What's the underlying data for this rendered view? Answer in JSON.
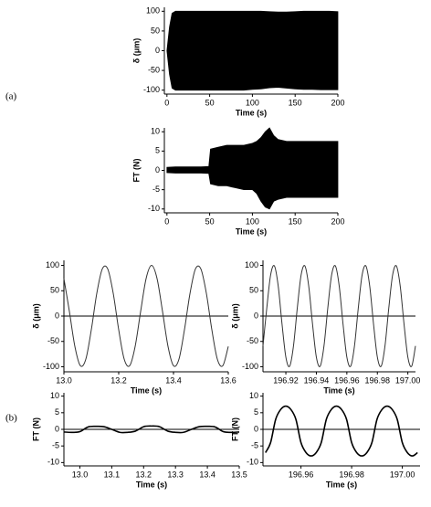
{
  "panel_labels": [
    "(a)",
    "(b)"
  ],
  "chart_data": [
    {
      "type": "band",
      "xlabel": "Time (s)",
      "ylabel": "δ (μm)",
      "x": [
        0,
        3,
        6,
        10,
        20,
        30,
        40,
        50,
        60,
        70,
        80,
        90,
        100,
        110,
        120,
        130,
        140,
        150,
        160,
        170,
        180,
        190,
        200
      ],
      "high": [
        0,
        60,
        95,
        100,
        100,
        100,
        100,
        100,
        100,
        100,
        100,
        100,
        100,
        100,
        99,
        98,
        98,
        99,
        100,
        100,
        100,
        100,
        99
      ],
      "low": [
        0,
        -60,
        -95,
        -100,
        -100,
        -100,
        -100,
        -100,
        -100,
        -100,
        -100,
        -100,
        -98,
        -97,
        -94,
        -93,
        -95,
        -97,
        -98,
        -98,
        -99,
        -99,
        -99
      ],
      "color": "#000000",
      "xlim": [
        -3,
        200
      ],
      "ylim": [
        -110,
        110
      ],
      "xticks": [
        0,
        50,
        100,
        150,
        200
      ],
      "yticks": [
        -100,
        -50,
        0,
        50,
        100
      ]
    },
    {
      "type": "band",
      "xlabel": "Time (s)",
      "ylabel": "FT (N)",
      "x": [
        0,
        10,
        20,
        30,
        40,
        49,
        51,
        60,
        70,
        80,
        90,
        100,
        105,
        110,
        115,
        120,
        125,
        130,
        140,
        150,
        160,
        170,
        180,
        190,
        200
      ],
      "high": [
        0.8,
        0.9,
        0.9,
        0.9,
        0.9,
        1,
        5.5,
        6,
        6.5,
        6.5,
        6.5,
        7,
        7.5,
        8.5,
        10,
        11,
        9,
        8,
        7.5,
        7.5,
        7.5,
        7.5,
        7.5,
        7.5,
        7.5
      ],
      "low": [
        -0.6,
        -0.7,
        -0.7,
        -0.7,
        -0.7,
        -0.8,
        -3.5,
        -4,
        -4,
        -4.5,
        -5,
        -5,
        -6,
        -8,
        -9.5,
        -10,
        -8,
        -7.5,
        -7,
        -7,
        -7,
        -7,
        -7,
        -7,
        -7
      ],
      "color": "#000000",
      "xlim": [
        -3,
        200
      ],
      "ylim": [
        -11,
        11
      ],
      "xticks": [
        0,
        50,
        100,
        150,
        200
      ],
      "yticks": [
        -10,
        -5,
        0,
        5,
        10
      ]
    },
    {
      "type": "line",
      "xlabel": "Time (s)",
      "ylabel": "δ (μm)",
      "x": [
        13.0,
        13.02,
        13.04,
        13.06,
        13.08,
        13.1,
        13.12,
        13.14,
        13.16,
        13.18,
        13.2,
        13.22,
        13.24,
        13.26,
        13.28,
        13.3,
        13.32,
        13.34,
        13.36,
        13.38,
        13.4,
        13.42,
        13.44,
        13.46,
        13.48,
        13.5,
        13.52,
        13.54,
        13.56,
        13.58,
        13.6
      ],
      "values": [
        74,
        9,
        -60,
        -98,
        -85,
        -27,
        45,
        93,
        93,
        45,
        -27,
        -85,
        -98,
        -60,
        9,
        74,
        100,
        74,
        9,
        -60,
        -98,
        -85,
        -27,
        44,
        93,
        93,
        45,
        -27,
        -85,
        -98,
        -60
      ],
      "color": "#333333",
      "xlim": [
        13.0,
        13.6
      ],
      "ylim": [
        -110,
        110
      ],
      "xticks": [
        {
          "value": 13.0,
          "label": "13.0"
        },
        13.2,
        13.4,
        13.6
      ],
      "yticks": [
        -100,
        -50,
        0,
        50,
        100
      ]
    },
    {
      "type": "line",
      "xlabel": "Time (s)",
      "ylabel": "δ (μm)",
      "x": [
        196.905,
        196.9075,
        196.91,
        196.9125,
        196.915,
        196.9175,
        196.92,
        196.9225,
        196.925,
        196.9275,
        196.93,
        196.9325,
        196.935,
        196.9375,
        196.94,
        196.9425,
        196.945,
        196.9475,
        196.95,
        196.9525,
        196.955,
        196.9575,
        196.96,
        196.9625,
        196.965,
        196.9675,
        196.97,
        196.9725,
        196.975,
        196.9775,
        196.98,
        196.9825,
        196.985,
        196.9875,
        196.99,
        196.9925,
        196.995,
        196.9975,
        197.0,
        197.0025,
        197.005
      ],
      "values": [
        -59,
        16,
        81,
        99,
        59,
        -16,
        -81,
        -99,
        -59,
        16,
        81,
        99,
        59,
        -16,
        -81,
        -99,
        -59,
        16,
        81,
        99,
        59,
        -16,
        -81,
        -99,
        -59,
        16,
        81,
        99,
        59,
        -16,
        -81,
        -99,
        -59,
        16,
        81,
        99,
        59,
        -16,
        -81,
        -99,
        -59
      ],
      "color": "#333333",
      "xlim": [
        196.905,
        197.005
      ],
      "ylim": [
        -110,
        110
      ],
      "xticks": [
        196.92,
        196.94,
        196.96,
        196.98,
        {
          "value": 197.0,
          "label": "197.00"
        }
      ],
      "yticks": [
        -100,
        -50,
        0,
        50,
        100
      ]
    },
    {
      "type": "line",
      "xlabel": "Time (s)",
      "ylabel": "FT (N)",
      "x": [
        12.95,
        12.975,
        13.0,
        13.025,
        13.05,
        13.075,
        13.1,
        13.125,
        13.15,
        13.175,
        13.2,
        13.225,
        13.25,
        13.275,
        13.3,
        13.325,
        13.35,
        13.375,
        13.4,
        13.425,
        13.45,
        13.475,
        13.5
      ],
      "values": [
        -0.8,
        -0.9,
        -0.7,
        0.7,
        0.9,
        0.8,
        0,
        -0.9,
        -0.9,
        -0.5,
        0.8,
        1,
        0.8,
        -0.5,
        -0.9,
        -0.9,
        0,
        0.8,
        0.9,
        0.7,
        -0.7,
        -0.9,
        -0.8
      ],
      "color": "#000000",
      "xlim": [
        12.95,
        13.5
      ],
      "ylim": [
        -11,
        11
      ],
      "xticks": [
        {
          "value": 13.0,
          "label": "13.0"
        },
        13.1,
        13.2,
        13.3,
        13.4,
        13.5
      ],
      "yticks": [
        -10,
        -5,
        0,
        5,
        10
      ]
    },
    {
      "type": "line",
      "xlabel": "Time (s)",
      "ylabel": "FT (N)",
      "x": [
        196.946,
        196.948,
        196.95,
        196.952,
        196.954,
        196.956,
        196.958,
        196.96,
        196.962,
        196.964,
        196.966,
        196.968,
        196.97,
        196.972,
        196.974,
        196.976,
        196.978,
        196.98,
        196.982,
        196.984,
        196.986,
        196.988,
        196.99,
        196.992,
        196.994,
        196.996,
        196.998,
        197.0,
        197.002,
        197.004,
        197.006
      ],
      "values": [
        -7,
        -4,
        3,
        6,
        7,
        6,
        3,
        -4,
        -7,
        -8,
        -7,
        -4,
        3,
        6,
        7,
        6,
        3,
        -4,
        -7,
        -8,
        -7,
        -4,
        3,
        6,
        7,
        6,
        3,
        -4,
        -7,
        -8,
        -7
      ],
      "color": "#000000",
      "xlim": [
        196.945,
        197.007
      ],
      "ylim": [
        -11,
        11
      ],
      "xticks": [
        196.96,
        196.98,
        {
          "value": 197.0,
          "label": "197.00"
        }
      ],
      "yticks": [
        -10,
        -5,
        0,
        5,
        10
      ]
    }
  ]
}
